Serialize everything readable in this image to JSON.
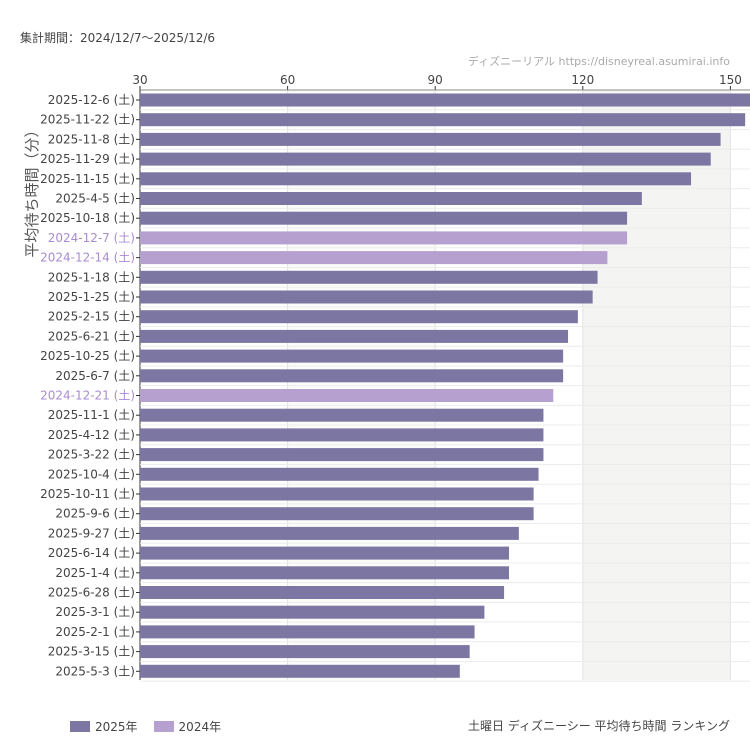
{
  "header": {
    "period": "集計期間：2024/12/7〜2025/12/6",
    "credit": "ディズニーリアル https://disneyreal.asumirai.info"
  },
  "footer": {
    "title": "土曜日 ディズニーシー 平均待ち時間 ランキング"
  },
  "colors": {
    "2025": "#7b76a2",
    "2024": "#b5a0cf",
    "label2024": "#a98cd0"
  },
  "chart_data": {
    "type": "bar",
    "orientation": "horizontal",
    "ylabel": "平均待ち時間（分）",
    "xlim": [
      30,
      150
    ],
    "xticks": [
      "30",
      "60",
      "90",
      "120",
      "150"
    ],
    "legend": [
      {
        "name": "2025年",
        "color": "#7b76a2"
      },
      {
        "name": "2024年",
        "color": "#b5a0cf"
      }
    ],
    "legend_position": "bottom-left",
    "categories": [
      "2025-12-6 (土)",
      "2025-11-22 (土)",
      "2025-11-8 (土)",
      "2025-11-29 (土)",
      "2025-11-15 (土)",
      "2025-4-5 (土)",
      "2025-10-18 (土)",
      "2024-12-7 (土)",
      "2024-12-14 (土)",
      "2025-1-18 (土)",
      "2025-1-25 (土)",
      "2025-2-15 (土)",
      "2025-6-21 (土)",
      "2025-10-25 (土)",
      "2025-6-7 (土)",
      "2024-12-21 (土)",
      "2025-11-1 (土)",
      "2025-4-12 (土)",
      "2025-3-22 (土)",
      "2025-10-4 (土)",
      "2025-10-11 (土)",
      "2025-9-6 (土)",
      "2025-9-27 (土)",
      "2025-6-14 (土)",
      "2025-1-4 (土)",
      "2025-6-28 (土)",
      "2025-3-1 (土)",
      "2025-2-1 (土)",
      "2025-3-15 (土)",
      "2025-5-3 (土)"
    ],
    "values": [
      155,
      153,
      148,
      146,
      142,
      132,
      129,
      129,
      125,
      123,
      122,
      119,
      117,
      116,
      116,
      114,
      112,
      112,
      112,
      111,
      110,
      110,
      107,
      105,
      105,
      104,
      100,
      98,
      97,
      95
    ],
    "years": [
      2025,
      2025,
      2025,
      2025,
      2025,
      2025,
      2025,
      2024,
      2024,
      2025,
      2025,
      2025,
      2025,
      2025,
      2025,
      2024,
      2025,
      2025,
      2025,
      2025,
      2025,
      2025,
      2025,
      2025,
      2025,
      2025,
      2025,
      2025,
      2025,
      2025
    ]
  }
}
